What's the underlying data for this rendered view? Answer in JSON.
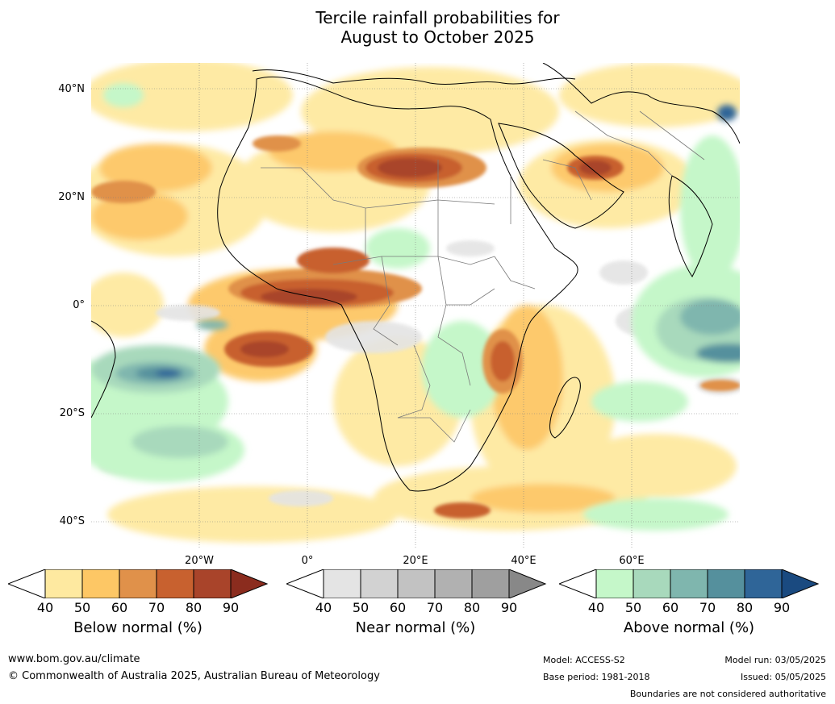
{
  "title": {
    "line1": "Tercile rainfall probabilities for",
    "line2": "August to October 2025"
  },
  "map": {
    "lat_labels": [
      "40°N",
      "20°N",
      "0°",
      "20°S",
      "40°S"
    ],
    "lon_labels": [
      "20°W",
      "0°",
      "20°E",
      "40°E",
      "60°E"
    ],
    "colors": {
      "below": [
        "#fee9a0",
        "#fdc765",
        "#e0914a",
        "#c8612f",
        "#a9442a",
        "#8b2c1e"
      ],
      "near": [
        "#e4e4e4",
        "#d2d2d2",
        "#c2c2c2",
        "#b1b1b1",
        "#9f9f9f",
        "#888888"
      ],
      "above": [
        "#c5f7c9",
        "#a8d9bc",
        "#7fb6ae",
        "#55909d",
        "#2f6598",
        "#1a4a80"
      ]
    }
  },
  "legends": [
    {
      "name": "Below normal (%)",
      "ticks": [
        "40",
        "50",
        "60",
        "70",
        "80",
        "90"
      ]
    },
    {
      "name": "Near normal (%)",
      "ticks": [
        "40",
        "50",
        "60",
        "70",
        "80",
        "90"
      ]
    },
    {
      "name": "Above normal (%)",
      "ticks": [
        "40",
        "50",
        "60",
        "70",
        "80",
        "90"
      ]
    }
  ],
  "footer": {
    "website": "www.bom.gov.au/climate",
    "copyright": "© Commonwealth of Australia 2025, Australian Bureau of Meteorology",
    "model": "Model: ACCESS-S2",
    "base_period": "Base period: 1981-2018",
    "model_run": "Model run: 03/05/2025",
    "issued": "Issued: 05/05/2025",
    "disclaimer": "Boundaries are not considered authoritative"
  }
}
